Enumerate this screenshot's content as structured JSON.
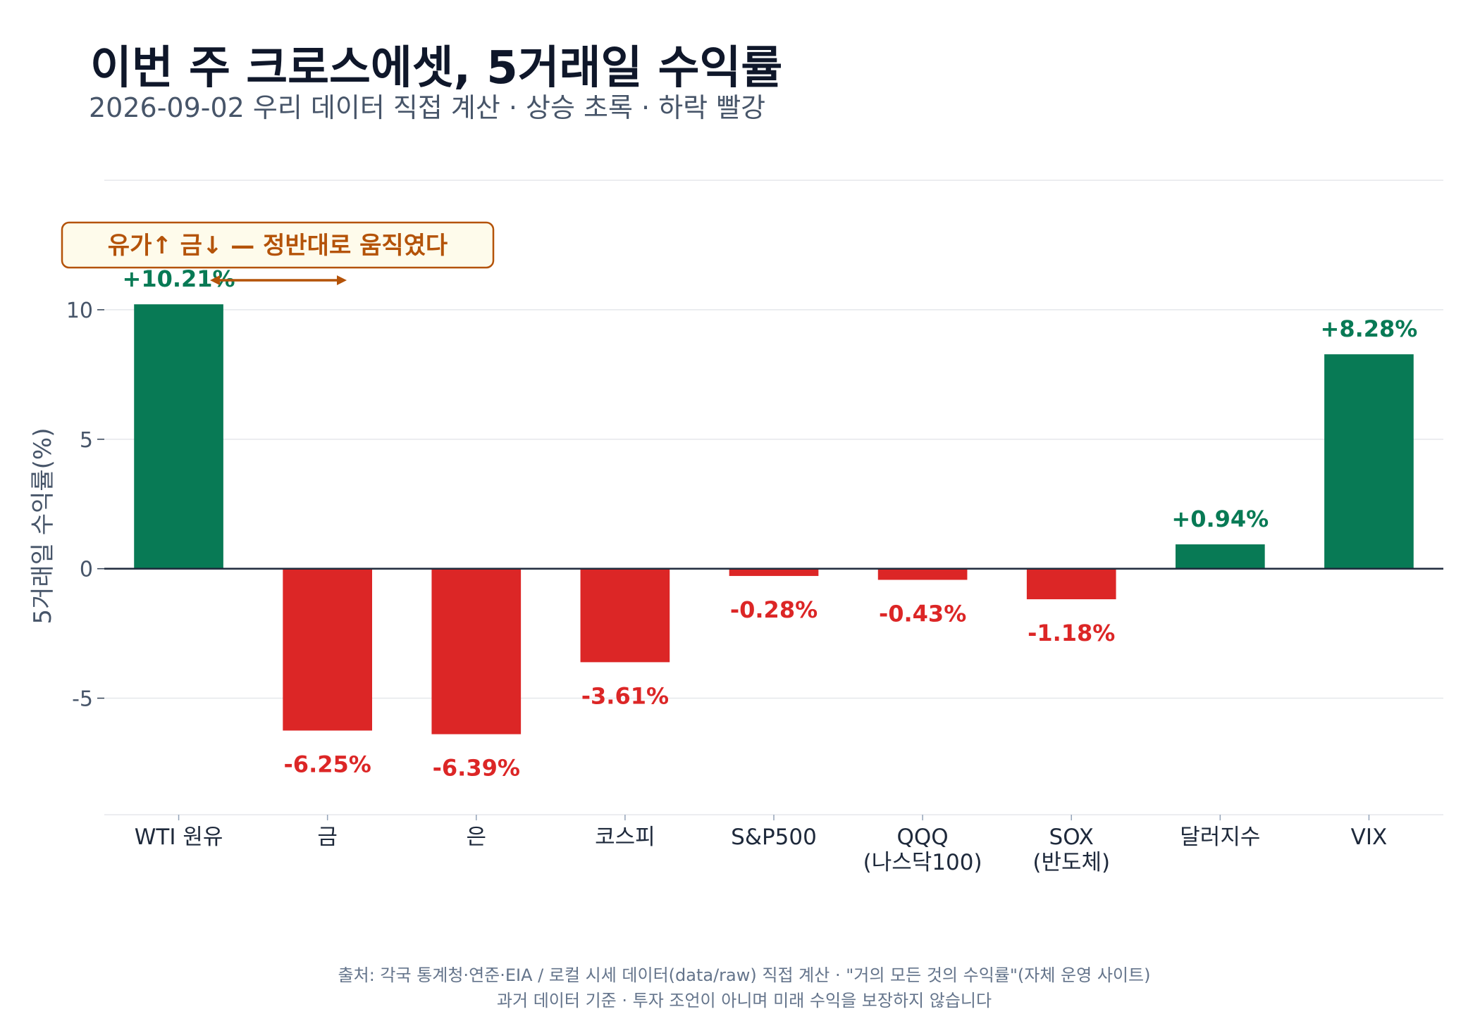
{
  "title": "이번 주 크로스에셋, 5거래일 수익률",
  "subtitle": "2026-09-02 우리 데이터 직접 계산 · 상승 초록 · 하락 빨강",
  "annotation": "유가↑ 금↓ — 정반대로 움직였다",
  "footer": {
    "line1": "출처: 각국 통계청·연준·EIA / 로컬 시세 데이터(data/raw) 직접 계산 · \"거의 모든 것의 수익률\"(자체 운영 사이트)",
    "line2": "과거 데이터 기준 · 투자 조언이 아니며 미래 수익을 보장하지 않습니다"
  },
  "colors": {
    "up": "#087a55",
    "down": "#dc2626",
    "annotation": "#b45309",
    "annotation_bg": "#fefbeb"
  },
  "chart_data": {
    "type": "bar",
    "categories": [
      [
        "WTI 원유"
      ],
      [
        "금"
      ],
      [
        "은"
      ],
      [
        "코스피"
      ],
      [
        "S&P500"
      ],
      [
        "QQQ",
        "(나스닥100)"
      ],
      [
        "SOX",
        "(반도체)"
      ],
      [
        "달러지수"
      ],
      [
        "VIX"
      ]
    ],
    "values": [
      10.21,
      -6.25,
      -6.39,
      -3.61,
      -0.28,
      -0.43,
      -1.18,
      0.94,
      8.28
    ],
    "labels": [
      "+10.21%",
      "-6.25%",
      "-6.39%",
      "-3.61%",
      "-0.28%",
      "-0.43%",
      "-1.18%",
      "+0.94%",
      "+8.28%"
    ],
    "ylabel": "5거래일 수익률(%)",
    "ylim": [
      -9.5,
      15
    ],
    "yticks": [
      -5,
      0,
      5,
      10
    ],
    "ytick_labels": [
      "-5",
      "0",
      "5",
      "10"
    ],
    "grid": true,
    "legend": "none"
  }
}
